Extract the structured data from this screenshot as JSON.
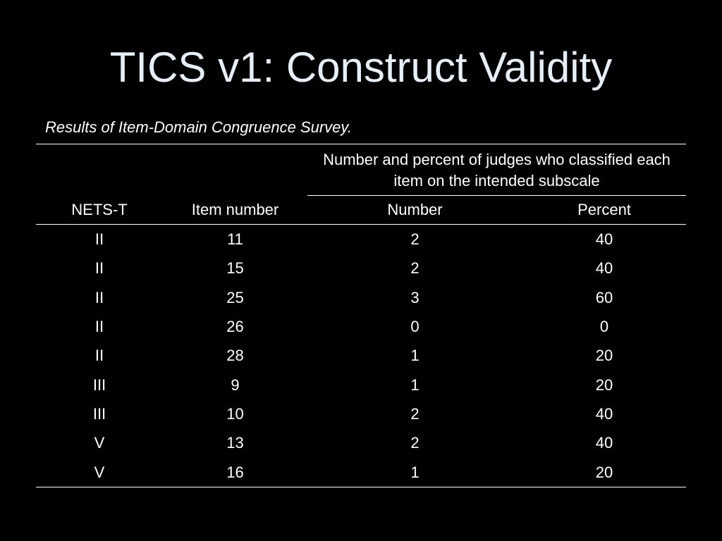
{
  "slide": {
    "title": "TICS v1: Construct Validity",
    "caption": "Results of Item-Domain Congruence Survey."
  },
  "table": {
    "headers": {
      "nets_t": "NETS-T",
      "item_number": "Item number",
      "group": "Number and percent of judges who classified each item on the intended subscale",
      "number": "Number",
      "percent": "Percent"
    },
    "rows": [
      {
        "nets_t": "II",
        "item_number": "11",
        "number": "2",
        "percent": "40"
      },
      {
        "nets_t": "II",
        "item_number": "15",
        "number": "2",
        "percent": "40"
      },
      {
        "nets_t": "II",
        "item_number": "25",
        "number": "3",
        "percent": "60"
      },
      {
        "nets_t": "II",
        "item_number": "26",
        "number": "0",
        "percent": "0"
      },
      {
        "nets_t": "II",
        "item_number": "28",
        "number": "1",
        "percent": "20"
      },
      {
        "nets_t": "III",
        "item_number": "9",
        "number": "1",
        "percent": "20"
      },
      {
        "nets_t": "III",
        "item_number": "10",
        "number": "2",
        "percent": "40"
      },
      {
        "nets_t": "V",
        "item_number": "13",
        "number": "2",
        "percent": "40"
      },
      {
        "nets_t": "V",
        "item_number": "16",
        "number": "1",
        "percent": "20"
      }
    ]
  },
  "colors": {
    "background": "#000000",
    "title": "#e6eef7",
    "text": "#ffffff"
  }
}
